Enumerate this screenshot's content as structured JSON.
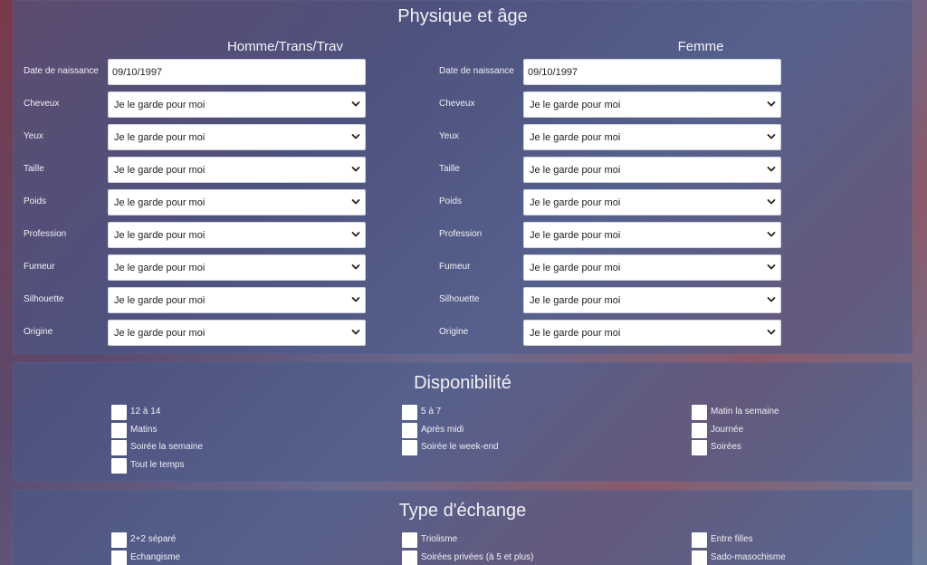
{
  "physique": {
    "title": "Physique et âge",
    "left": {
      "heading": "Homme/Trans/Trav",
      "birth_label": "Date de naissance",
      "birth_value": "09/10/1997",
      "selects": [
        {
          "label": "Cheveux",
          "value": "Je le garde pour moi"
        },
        {
          "label": "Yeux",
          "value": "Je le garde pour moi"
        },
        {
          "label": "Taille",
          "value": "Je le garde pour moi"
        },
        {
          "label": "Poids",
          "value": "Je le garde pour moi"
        },
        {
          "label": "Profession",
          "value": "Je le garde pour moi"
        },
        {
          "label": "Fumeur",
          "value": "Je le garde pour moi"
        },
        {
          "label": "Silhouette",
          "value": "Je le garde pour moi"
        },
        {
          "label": "Origine",
          "value": "Je le garde pour moi"
        }
      ]
    },
    "right": {
      "heading": "Femme",
      "birth_label": "Date de naissance",
      "birth_value": "09/10/1997",
      "selects": [
        {
          "label": "Cheveux",
          "value": "Je le garde pour moi"
        },
        {
          "label": "Yeux",
          "value": "Je le garde pour moi"
        },
        {
          "label": "Taille",
          "value": "Je le garde pour moi"
        },
        {
          "label": "Poids",
          "value": "Je le garde pour moi"
        },
        {
          "label": "Profession",
          "value": "Je le garde pour moi"
        },
        {
          "label": "Fumeur",
          "value": "Je le garde pour moi"
        },
        {
          "label": "Silhouette",
          "value": "Je le garde pour moi"
        },
        {
          "label": "Origine",
          "value": "Je le garde pour moi"
        }
      ]
    }
  },
  "disponibilite": {
    "title": "Disponibilité",
    "col1": [
      "12 à 14",
      "Matins",
      "Soirée la semaine",
      "Tout le temps"
    ],
    "col2": [
      "5 à 7",
      "Après midi",
      "Soirée le week-end"
    ],
    "col3": [
      "Matin la semaine",
      "Journée",
      "Soirées"
    ]
  },
  "echange": {
    "title": "Type d'échange",
    "col1": [
      "2+2 séparé",
      "Echangisme"
    ],
    "col2": [
      "Triolisme",
      "Soirées privées (à 5 et plus)"
    ],
    "col3": [
      "Entre filles",
      "Sado-masochisme"
    ]
  }
}
